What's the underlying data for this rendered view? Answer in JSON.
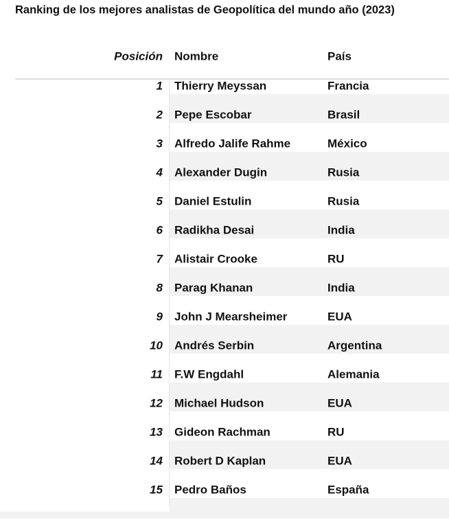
{
  "title": "Ranking de los mejores analistas de Geopolítica del mundo año  (2023)",
  "table": {
    "header": [
      "Posición",
      "Nombre",
      "País"
    ],
    "rows": [
      [
        1,
        "Thierry Meyssan",
        "Francia"
      ],
      [
        2,
        "Pepe Escobar",
        "Brasil"
      ],
      [
        3,
        "Alfredo Jalife Rahme",
        "México"
      ],
      [
        4,
        "Alexander Dugin",
        "Rusia"
      ],
      [
        5,
        "Daniel Estulin",
        "Rusia"
      ],
      [
        6,
        "Radikha Desai",
        "India"
      ],
      [
        7,
        "Alistair Crooke",
        "RU"
      ],
      [
        8,
        "Parag Khanan",
        "India"
      ],
      [
        9,
        "John J Mearsheimer",
        "EUA"
      ],
      [
        10,
        "Andrés Serbin",
        "Argentina"
      ],
      [
        11,
        "F.W Engdahl",
        "Alemania"
      ],
      [
        12,
        "Michael Hudson",
        "EUA"
      ],
      [
        13,
        "Gideon Rachman",
        "RU"
      ],
      [
        14,
        "Robert D Kaplan",
        "EUA"
      ],
      [
        15,
        "Pedro Baños",
        "España"
      ]
    ]
  }
}
